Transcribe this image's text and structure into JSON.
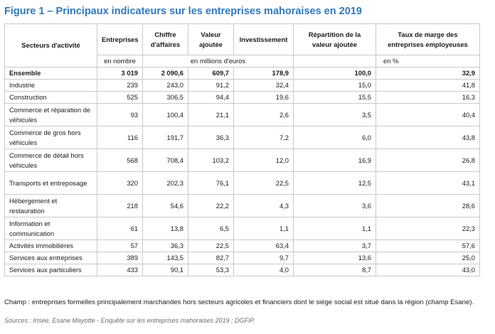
{
  "title": "Figure 1 – Principaux indicateurs sur les entreprises mahoraises en 2019",
  "headers": {
    "secteurs": "Secteurs d'activité",
    "entreprises": "Entreprises",
    "chiffre": "Chiffre d'affaires",
    "valeur": "Valeur ajoutée",
    "investissement": "Investissement",
    "repartition": "Répartition de la valeur ajoutée",
    "taux": "Taux de marge des entreprises employeuses"
  },
  "units": {
    "nombre": "en nombre",
    "millions": "en millions d'euros",
    "pct": "en %"
  },
  "rows": [
    {
      "label": "Ensemble",
      "values": [
        "3 019",
        "2 090,6",
        "609,7",
        "178,9",
        "100,0",
        "32,9"
      ],
      "bold": true
    },
    {
      "label": "Industrie",
      "values": [
        "239",
        "243,0",
        "91,2",
        "32,4",
        "15,0",
        "41,8"
      ]
    },
    {
      "label": "Construction",
      "values": [
        "525",
        "306,5",
        "94,4",
        "19,6",
        "15,5",
        "16,3"
      ]
    },
    {
      "label": "Commerce et réparation de véhicules",
      "values": [
        "93",
        "100,4",
        "21,1",
        "2,6",
        "3,5",
        "40,4"
      ]
    },
    {
      "label": "Commerce de gros hors véhicules",
      "values": [
        "116",
        "191,7",
        "36,3",
        "7,2",
        "6,0",
        "43,8"
      ]
    },
    {
      "label": "Commerce de détail hors véhicules",
      "values": [
        "568",
        "708,4",
        "103,2",
        "12,0",
        "16,9",
        "26,8"
      ]
    },
    {
      "label": "Transports et entreposage",
      "values": [
        "320",
        "202,3",
        "76,1",
        "22,5",
        "12,5",
        "43,1"
      ]
    },
    {
      "label": "Hébergement et restauration",
      "values": [
        "218",
        "54,6",
        "22,2",
        "4,3",
        "3,6",
        "28,6"
      ]
    },
    {
      "label": "Information et communication",
      "values": [
        "61",
        "13,8",
        "6,5",
        "1,1",
        "1,1",
        "22,3"
      ]
    },
    {
      "label": "Activités immobilières",
      "values": [
        "57",
        "36,3",
        "22,5",
        "63,4",
        "3,7",
        "57,6"
      ]
    },
    {
      "label": "Services aux entreprises",
      "values": [
        "389",
        "143,5",
        "82,7",
        "9,7",
        "13,6",
        "25,0"
      ]
    },
    {
      "label": "Services aux particuliers",
      "values": [
        "433",
        "90,1",
        "53,3",
        "4,0",
        "8,7",
        "43,0"
      ]
    }
  ],
  "footnote": "Champ : entreprises formelles principalement marchandes hors secteurs agricoles et financiers dont le siège social est situé dans la région (champ Esane).",
  "source": "Sources : Insee, Esane Mayotte - Enquête sur les entreprises mahoraises 2019 ; DGFiP."
}
